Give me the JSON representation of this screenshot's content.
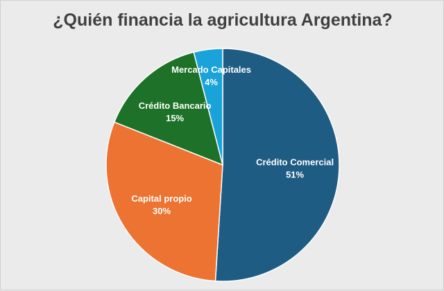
{
  "chart_data": {
    "type": "pie",
    "title": "¿Quién financia la agricultura Argentina?",
    "slices": [
      {
        "label": "Crédito Comercial",
        "value": 51,
        "display": "51%",
        "color": "#1f5c84"
      },
      {
        "label": "Capital propio",
        "value": 30,
        "display": "30%",
        "color": "#ec7331"
      },
      {
        "label": "Crédito Bancario",
        "value": 15,
        "display": "15%",
        "color": "#1e7128"
      },
      {
        "label": "Mercado Capitales",
        "value": 4,
        "display": "4%",
        "color": "#1aa3d9"
      }
    ]
  }
}
